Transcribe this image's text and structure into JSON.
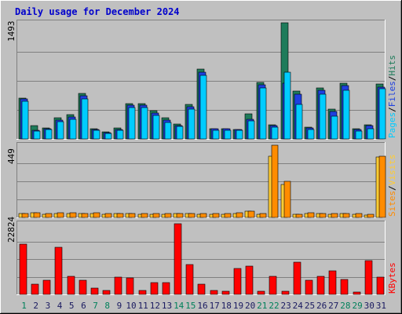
{
  "title": "Daily usage for December 2024",
  "colors": {
    "background": "#C0C0C0",
    "hits": "#1E7B5A",
    "files": "#1E40E0",
    "pages": "#00CCFF",
    "visits": "#FFCC33",
    "sites": "#FF8C00",
    "kbytes": "#FF0000",
    "weekend_label": "#00805A",
    "weekday_label": "#1A1A60",
    "title": "#0000CC"
  },
  "chart_data": [
    {
      "type": "bar",
      "name": "hits-files-pages",
      "max_label": "1493",
      "ylim": [
        0,
        1493
      ],
      "legend": [
        {
          "label": "Pages",
          "color": "#00CCFF"
        },
        {
          "label": "/",
          "color": "#000000"
        },
        {
          "label": "Files",
          "color": "#1E40E0"
        },
        {
          "label": "/",
          "color": "#000000"
        },
        {
          "label": "Hits",
          "color": "#1E7B5A"
        }
      ],
      "categories": [
        "1",
        "2",
        "3",
        "4",
        "5",
        "6",
        "7",
        "8",
        "9",
        "10",
        "11",
        "12",
        "13",
        "14",
        "15",
        "16",
        "17",
        "18",
        "19",
        "20",
        "21",
        "22",
        "23",
        "24",
        "25",
        "26",
        "27",
        "28",
        "29",
        "30",
        "31"
      ],
      "series": [
        {
          "key": "hits",
          "values": [
            525,
            175,
            145,
            275,
            315,
            585,
            130,
            90,
            145,
            455,
            450,
            365,
            270,
            195,
            445,
            895,
            135,
            135,
            125,
            325,
            725,
            180,
            1493,
            615,
            155,
            655,
            380,
            715,
            135,
            185,
            705
          ]
        },
        {
          "key": "files",
          "values": [
            510,
            115,
            130,
            245,
            280,
            555,
            120,
            80,
            125,
            435,
            435,
            330,
            240,
            175,
            415,
            860,
            130,
            130,
            120,
            255,
            695,
            170,
            715,
            575,
            145,
            625,
            355,
            685,
            120,
            175,
            665
          ]
        },
        {
          "key": "pages",
          "values": [
            480,
            105,
            120,
            220,
            250,
            515,
            110,
            70,
            115,
            405,
            405,
            300,
            215,
            160,
            385,
            820,
            115,
            115,
            110,
            230,
            660,
            150,
            855,
            445,
            120,
            570,
            290,
            630,
            105,
            130,
            645
          ]
        }
      ]
    },
    {
      "type": "bar",
      "name": "visits-sites",
      "max_label": "449",
      "ylim": [
        0,
        449
      ],
      "legend": [
        {
          "label": "Sites",
          "color": "#FF8C00"
        },
        {
          "label": "/",
          "color": "#000000"
        },
        {
          "label": "Visits",
          "color": "#FFCC33"
        }
      ],
      "categories": [
        "1",
        "2",
        "3",
        "4",
        "5",
        "6",
        "7",
        "8",
        "9",
        "10",
        "11",
        "12",
        "13",
        "14",
        "15",
        "16",
        "17",
        "18",
        "19",
        "20",
        "21",
        "22",
        "23",
        "24",
        "25",
        "26",
        "27",
        "28",
        "29",
        "30",
        "31"
      ],
      "series": [
        {
          "key": "visits",
          "values": [
            22,
            27,
            20,
            25,
            26,
            22,
            26,
            21,
            23,
            22,
            20,
            20,
            20,
            22,
            24,
            19,
            19,
            20,
            26,
            37,
            20,
            380,
            205,
            18,
            25,
            22,
            20,
            22,
            20,
            16,
            375
          ]
        },
        {
          "key": "sites",
          "values": [
            25,
            30,
            22,
            28,
            30,
            25,
            30,
            24,
            25,
            25,
            22,
            22,
            22,
            25,
            25,
            22,
            22,
            22,
            28,
            40,
            22,
            449,
            225,
            20,
            28,
            25,
            22,
            25,
            22,
            18,
            380
          ]
        }
      ]
    },
    {
      "type": "bar",
      "name": "kbytes",
      "max_label": "22824",
      "ylim": [
        0,
        22824
      ],
      "legend": [
        {
          "label": "KBytes",
          "color": "#FF0000"
        }
      ],
      "categories": [
        "1",
        "2",
        "3",
        "4",
        "5",
        "6",
        "7",
        "8",
        "9",
        "10",
        "11",
        "12",
        "13",
        "14",
        "15",
        "16",
        "17",
        "18",
        "19",
        "20",
        "21",
        "22",
        "23",
        "24",
        "25",
        "26",
        "27",
        "28",
        "29",
        "30",
        "31"
      ],
      "series": [
        {
          "key": "kbytes",
          "values": [
            16300,
            3220,
            4620,
            15200,
            5880,
            4480,
            2100,
            1260,
            5600,
            5320,
            1260,
            3780,
            3780,
            22824,
            9520,
            3220,
            1260,
            1120,
            8400,
            9240,
            980,
            5880,
            1120,
            10500,
            4620,
            5880,
            7560,
            4900,
            700,
            10780,
            5600
          ]
        }
      ]
    }
  ],
  "days": [
    {
      "label": "1",
      "weekend": true
    },
    {
      "label": "2",
      "weekend": false
    },
    {
      "label": "3",
      "weekend": false
    },
    {
      "label": "4",
      "weekend": false
    },
    {
      "label": "5",
      "weekend": false
    },
    {
      "label": "6",
      "weekend": false
    },
    {
      "label": "7",
      "weekend": true
    },
    {
      "label": "8",
      "weekend": true
    },
    {
      "label": "9",
      "weekend": false
    },
    {
      "label": "10",
      "weekend": false
    },
    {
      "label": "11",
      "weekend": false
    },
    {
      "label": "12",
      "weekend": false
    },
    {
      "label": "13",
      "weekend": false
    },
    {
      "label": "14",
      "weekend": true
    },
    {
      "label": "15",
      "weekend": true
    },
    {
      "label": "16",
      "weekend": false
    },
    {
      "label": "17",
      "weekend": false
    },
    {
      "label": "18",
      "weekend": false
    },
    {
      "label": "19",
      "weekend": false
    },
    {
      "label": "20",
      "weekend": false
    },
    {
      "label": "21",
      "weekend": true
    },
    {
      "label": "22",
      "weekend": true
    },
    {
      "label": "23",
      "weekend": false
    },
    {
      "label": "24",
      "weekend": false
    },
    {
      "label": "25",
      "weekend": false
    },
    {
      "label": "26",
      "weekend": false
    },
    {
      "label": "27",
      "weekend": false
    },
    {
      "label": "28",
      "weekend": true
    },
    {
      "label": "29",
      "weekend": true
    },
    {
      "label": "30",
      "weekend": false
    },
    {
      "label": "31",
      "weekend": false
    }
  ]
}
